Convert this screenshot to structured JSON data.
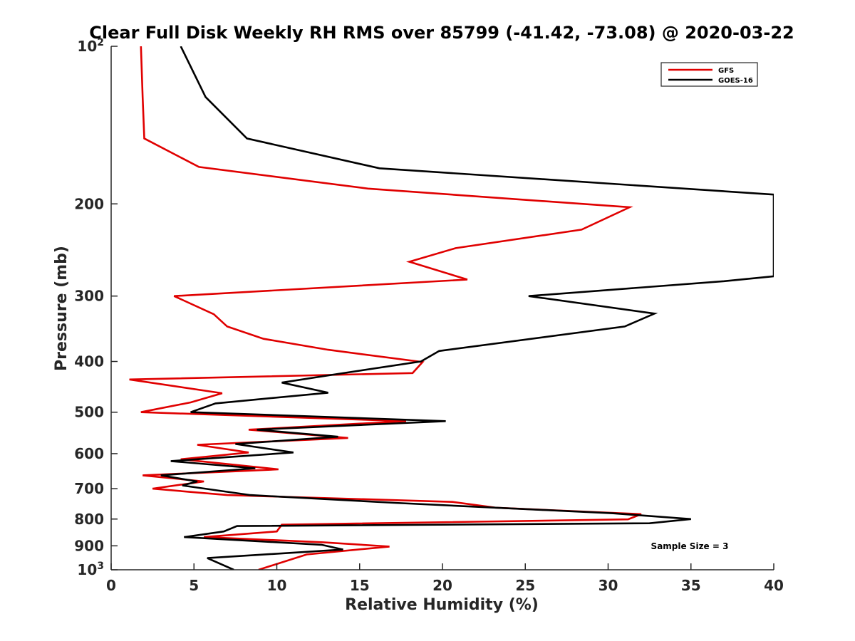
{
  "chart_data": {
    "type": "line",
    "title": "Clear Full Disk Weekly RH RMS over 85799 (-41.42, -73.08) @ 2020-03-22",
    "xlabel": "Relative Humidity (%)",
    "ylabel": "Pressure (mb)",
    "xlim": [
      0,
      40
    ],
    "ylim": [
      100,
      1000
    ],
    "y_scale": "log",
    "y_reversed": true,
    "x_ticks": [
      "0",
      "5",
      "10",
      "15",
      "20",
      "25",
      "30",
      "35",
      "40"
    ],
    "y_ticks": [
      {
        "value": 100,
        "base": "10",
        "exp": "2"
      },
      {
        "value": 200,
        "label": "200"
      },
      {
        "value": 300,
        "label": "300"
      },
      {
        "value": 400,
        "label": "400"
      },
      {
        "value": 500,
        "label": "500"
      },
      {
        "value": 600,
        "label": "600"
      },
      {
        "value": 700,
        "label": "700"
      },
      {
        "value": 800,
        "label": "800"
      },
      {
        "value": 900,
        "label": "900"
      },
      {
        "value": 1000,
        "base": "10",
        "exp": "3"
      }
    ],
    "grid": false,
    "legend_position": "top-right",
    "annotation": "Sample Size = 3",
    "series": [
      {
        "name": "GFS",
        "color": "#e00000",
        "points": [
          [
            1.8,
            100
          ],
          [
            1.9,
            125
          ],
          [
            2.0,
            150
          ],
          [
            5.3,
            170
          ],
          [
            15.5,
            187
          ],
          [
            31.3,
            203
          ],
          [
            28.4,
            224
          ],
          [
            20.8,
            243
          ],
          [
            18.0,
            258
          ],
          [
            21.5,
            279
          ],
          [
            3.8,
            300
          ],
          [
            6.2,
            325
          ],
          [
            7.0,
            343
          ],
          [
            9.2,
            362
          ],
          [
            13.1,
            380
          ],
          [
            18.8,
            401
          ],
          [
            18.2,
            421
          ],
          [
            1.1,
            433
          ],
          [
            6.7,
            460
          ],
          [
            4.8,
            479
          ],
          [
            1.8,
            500
          ],
          [
            17.8,
            520
          ],
          [
            8.3,
            540
          ],
          [
            14.3,
            560
          ],
          [
            5.2,
            577
          ],
          [
            8.3,
            597
          ],
          [
            4.2,
            615
          ],
          [
            10.1,
            643
          ],
          [
            1.9,
            660
          ],
          [
            5.6,
            678
          ],
          [
            2.5,
            700
          ],
          [
            7.0,
            720
          ],
          [
            20.6,
            742
          ],
          [
            23.2,
            761
          ],
          [
            32.0,
            783
          ],
          [
            31.2,
            801
          ],
          [
            10.3,
            820
          ],
          [
            10.0,
            845
          ],
          [
            5.6,
            866
          ],
          [
            12.8,
            886
          ],
          [
            16.8,
            903
          ],
          [
            11.8,
            935
          ],
          [
            8.9,
            1000
          ]
        ]
      },
      {
        "name": "GOES-16",
        "color": "#000000",
        "points": [
          [
            4.2,
            100
          ],
          [
            5.7,
            125
          ],
          [
            8.2,
            150
          ],
          [
            16.2,
            171
          ],
          [
            40.0,
            192
          ],
          [
            40.0,
            275
          ],
          [
            37.0,
            281
          ],
          [
            25.2,
            300
          ],
          [
            32.8,
            324
          ],
          [
            31.0,
            343
          ],
          [
            19.8,
            382
          ],
          [
            18.7,
            400
          ],
          [
            13.8,
            422
          ],
          [
            10.3,
            439
          ],
          [
            13.1,
            459
          ],
          [
            6.3,
            481
          ],
          [
            4.8,
            500
          ],
          [
            20.2,
            520
          ],
          [
            8.8,
            540
          ],
          [
            13.7,
            557
          ],
          [
            7.5,
            575
          ],
          [
            11.0,
            597
          ],
          [
            3.6,
            620
          ],
          [
            8.7,
            640
          ],
          [
            3.0,
            660
          ],
          [
            5.2,
            678
          ],
          [
            4.3,
            690
          ],
          [
            8.4,
            720
          ],
          [
            17.1,
            745
          ],
          [
            30.3,
            780
          ],
          [
            35.0,
            800
          ],
          [
            32.5,
            815
          ],
          [
            7.6,
            825
          ],
          [
            6.8,
            845
          ],
          [
            4.4,
            866
          ],
          [
            12.7,
            896
          ],
          [
            14.0,
            915
          ],
          [
            5.8,
            950
          ],
          [
            7.4,
            1000
          ]
        ]
      }
    ]
  }
}
